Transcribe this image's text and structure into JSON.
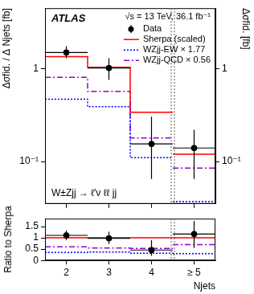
{
  "chart_data": [
    {
      "type": "line",
      "y_label": "Δσfid. / Δ Njets [fb]",
      "y2_label": "Δσfid. [fb]",
      "annotations": [
        "ATLAS",
        "√s = 13 TeV, 36.1 fb⁻¹",
        "W±Zjj → ℓ′ν ℓℓ jj"
      ],
      "log": "y",
      "grid": false,
      "legend": "upper right",
      "tick_labels": "y",
      "x": [
        2,
        3,
        4,
        5
      ],
      "xlim": [
        1.5,
        5.5
      ],
      "xticks": [
        2,
        3,
        4,
        {
          "value": 5,
          "label": "≥ 5"
        }
      ],
      "ylim": [
        0.035,
        4.5
      ],
      "yticks": [
        {
          "value": 0.1,
          "label": "10⁻¹"
        },
        1
      ],
      "y2lim": [
        0.035,
        4.5
      ],
      "y2ticks": [
        {
          "value": 0.1,
          "label": "10⁻¹"
        },
        1
      ],
      "series": [
        {
          "name": "Data",
          "type": "scatter",
          "color": "#000000",
          "marker": "circle",
          "values": [
            1.5,
            1.02,
            0.155,
            0.14
          ],
          "err_low": [
            0.2,
            0.26,
            0.09,
            0.075
          ],
          "err_high": [
            0.25,
            0.28,
            0.15,
            0.08
          ]
        },
        {
          "name": "Sherpa (scaled)",
          "type": "step",
          "color": "#ff0000",
          "line_style": "solid",
          "values": [
            1.35,
            1.04,
            0.34,
            0.12
          ]
        },
        {
          "name": "WZjj-EW × 1.77",
          "type": "step",
          "color": "#0000ff",
          "line_style": "dotted",
          "values": [
            0.47,
            0.39,
            0.11,
            0.037
          ]
        },
        {
          "name": "WZjj-QCD × 0.56",
          "type": "step",
          "color": "#9900cc",
          "line_style": "dashdot",
          "values": [
            0.81,
            0.57,
            0.18,
            0.085
          ]
        }
      ]
    },
    {
      "type": "line",
      "x_label": "Njets",
      "y_label": "Ratio to Sherpa",
      "grid": false,
      "x": [
        2,
        3,
        4,
        5
      ],
      "xlim": [
        1.5,
        5.5
      ],
      "xticks": [
        2,
        3,
        4,
        {
          "value": 5,
          "label": "≥ 5"
        }
      ],
      "ylim": [
        0,
        1.85
      ],
      "yticks": [
        0,
        0.5,
        1,
        1.5
      ],
      "series": [
        {
          "name": "Data",
          "type": "scatter",
          "color": "#000000",
          "marker": "circle",
          "values": [
            1.11,
            0.98,
            0.46,
            1.17
          ],
          "err_low": [
            0.21,
            0.25,
            0.26,
            0.62
          ],
          "err_high": [
            0.21,
            0.29,
            0.44,
            0.58
          ]
        },
        {
          "name": "Sherpa (scaled)",
          "type": "step",
          "color": "#ff0000",
          "line_style": "solid",
          "values": [
            1,
            1,
            1,
            1
          ]
        },
        {
          "name": "WZjj-EW × 1.77",
          "type": "step",
          "color": "#0000ff",
          "line_style": "dotted",
          "values": [
            0.35,
            0.37,
            0.32,
            0.3
          ]
        },
        {
          "name": "WZjj-QCD × 0.56",
          "type": "step",
          "color": "#9900cc",
          "line_style": "dashdot",
          "values": [
            0.6,
            0.55,
            0.53,
            0.7
          ]
        }
      ]
    }
  ]
}
